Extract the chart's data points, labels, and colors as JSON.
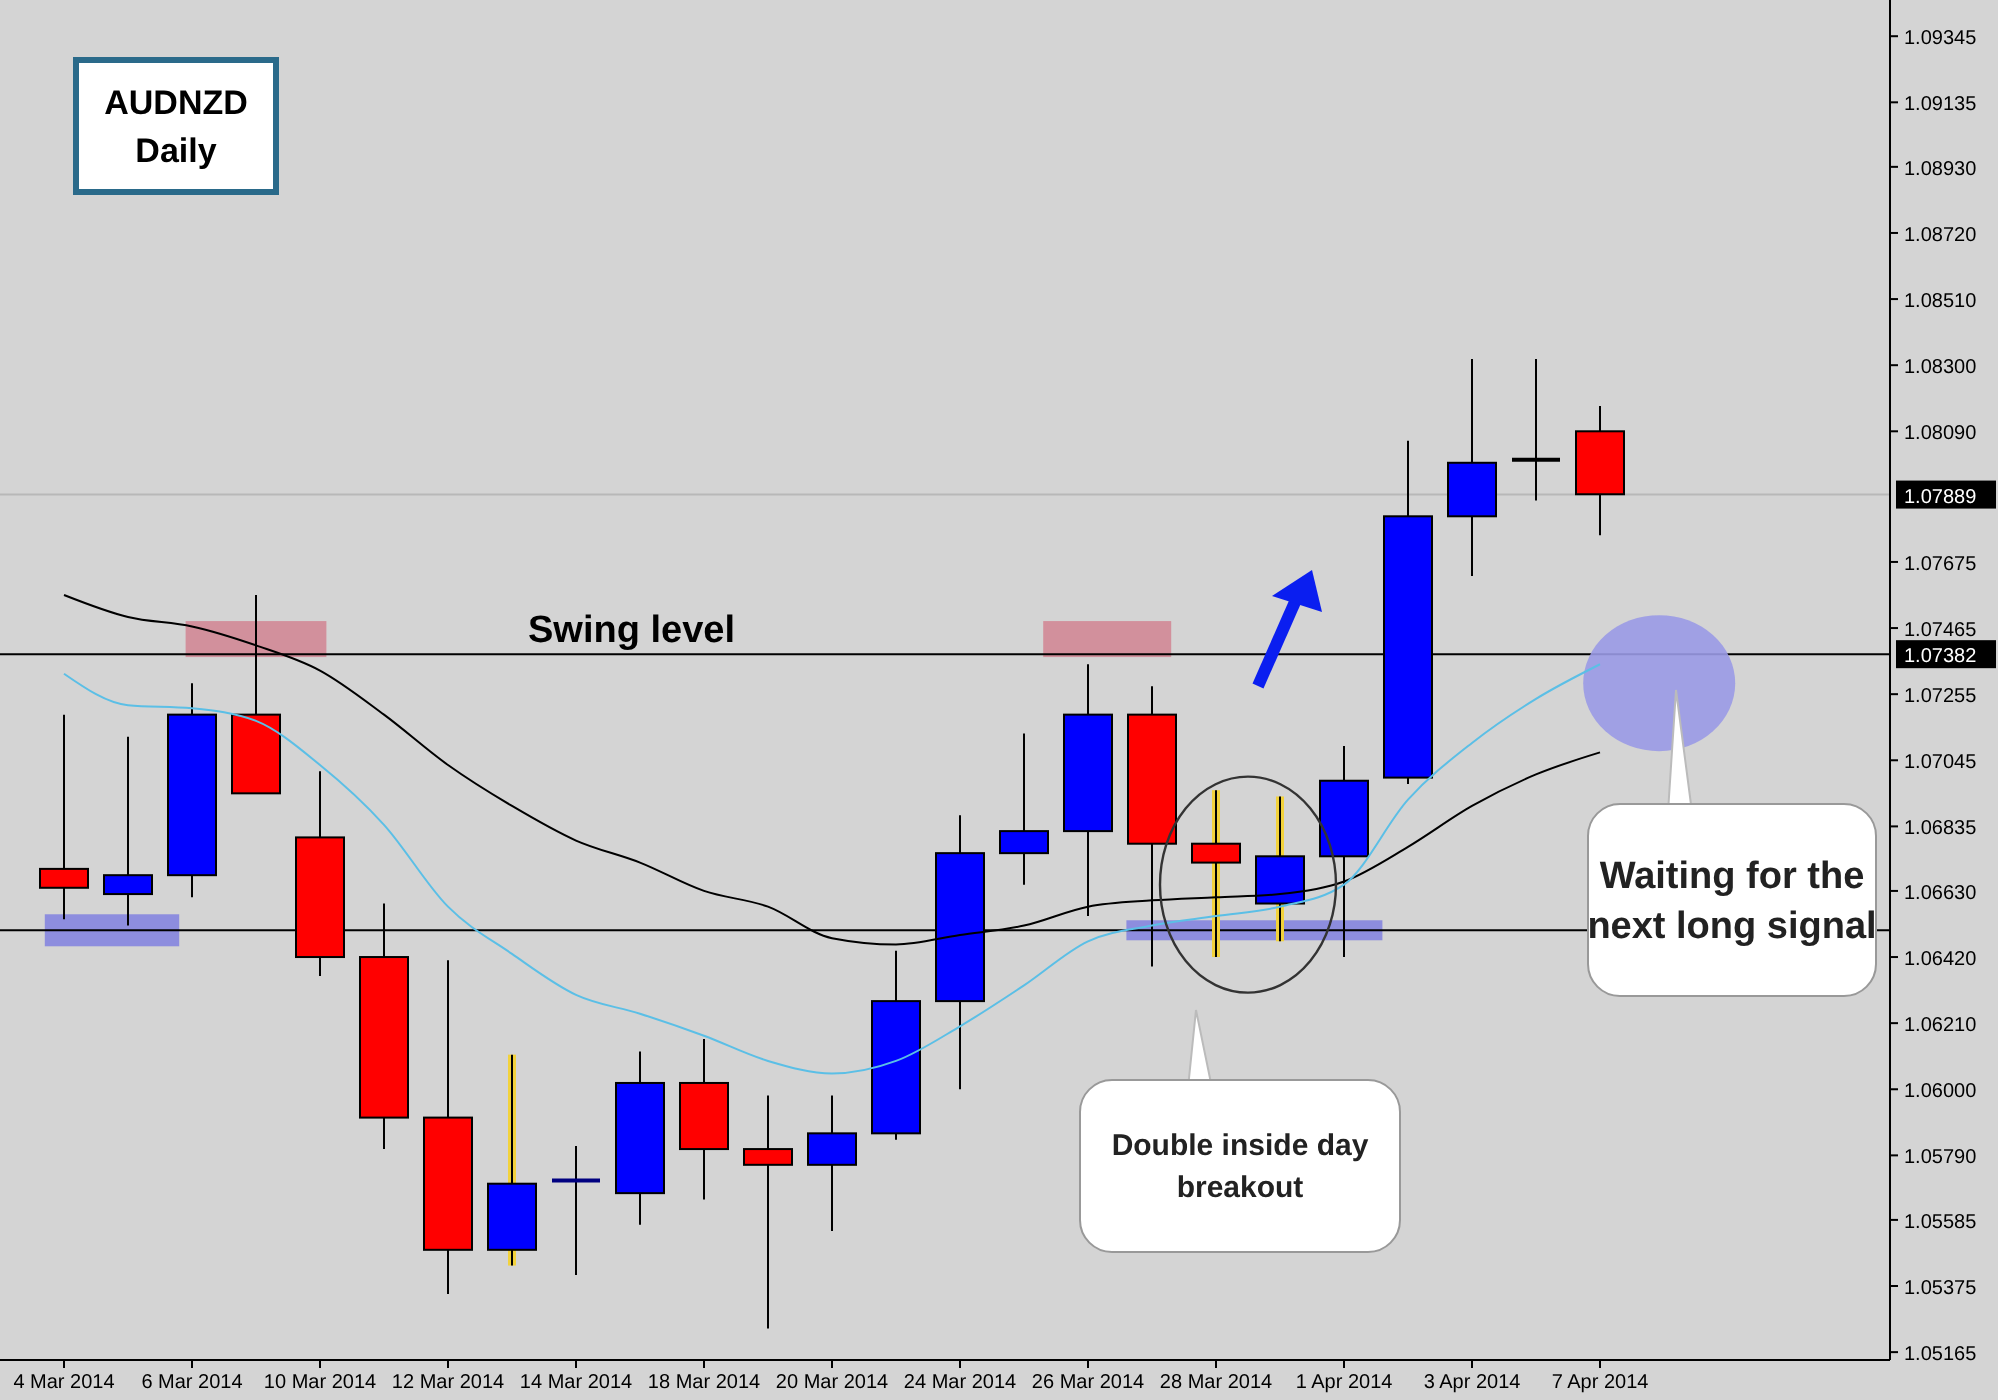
{
  "chart_data": {
    "type": "candlestick",
    "title": "AUDNZD",
    "subtitle": "Daily",
    "categories": [
      "4 Mar 2014",
      null,
      "6 Mar 2014",
      null,
      "10 Mar 2014",
      null,
      "12 Mar 2014",
      null,
      "14 Mar 2014",
      null,
      "18 Mar 2014",
      null,
      "20 Mar 2014",
      null,
      "24 Mar 2014",
      null,
      "26 Mar 2014",
      null,
      "28 Mar 2014",
      null,
      "1 Apr 2014",
      null,
      "3 Apr 2014",
      null,
      "7 Apr 2014"
    ],
    "ohlc": [
      [
        1.067,
        1.0719,
        1.0654,
        1.0664
      ],
      [
        1.0662,
        1.0712,
        1.0652,
        1.0668
      ],
      [
        1.0668,
        1.0729,
        1.0661,
        1.0719
      ],
      [
        1.0719,
        1.0757,
        1.0694,
        1.0694
      ],
      [
        1.068,
        1.0701,
        1.0636,
        1.0642
      ],
      [
        1.0642,
        1.0659,
        1.0581,
        1.0591
      ],
      [
        1.0591,
        1.0641,
        1.0535,
        1.0549
      ],
      [
        1.0549,
        1.0611,
        1.0544,
        1.057
      ],
      [
        1.057,
        1.0582,
        1.0541,
        1.0571
      ],
      [
        1.0567,
        1.0612,
        1.0557,
        1.0602
      ],
      [
        1.0602,
        1.0616,
        1.0565,
        1.0581
      ],
      [
        1.0581,
        1.0598,
        1.0524,
        1.0576
      ],
      [
        1.0576,
        1.0598,
        1.0555,
        1.0586
      ],
      [
        1.0586,
        1.0644,
        1.0584,
        1.0628
      ],
      [
        1.0628,
        1.0687,
        1.06,
        1.0675
      ],
      [
        1.0675,
        1.0713,
        1.0665,
        1.0682
      ],
      [
        1.0682,
        1.0735,
        1.0655,
        1.0719
      ],
      [
        1.0719,
        1.0728,
        1.0639,
        1.0678
      ],
      [
        1.0678,
        1.0695,
        1.0642,
        1.0672
      ],
      [
        1.0659,
        1.0693,
        1.0647,
        1.0674
      ],
      [
        1.0674,
        1.0709,
        1.0642,
        1.0698
      ],
      [
        1.0699,
        1.0806,
        1.0697,
        1.0782
      ],
      [
        1.0782,
        1.0832,
        1.0763,
        1.0799
      ],
      [
        1.0799,
        1.0832,
        1.0787,
        1.08
      ],
      [
        1.0809,
        1.0817,
        1.0776,
        1.0789
      ]
    ],
    "colors": [
      "#ff0000",
      "#0000ff",
      "#0000ff",
      "#ff0000",
      "#ff0000",
      "#ff0000",
      "#ff0000",
      "#0000ff",
      "#000080",
      "#0000ff",
      "#ff0000",
      "#ff0000",
      "#0000ff",
      "#0000ff",
      "#0000ff",
      "#0000ff",
      "#0000ff",
      "#ff0000",
      "#ff0000",
      "#0000ff",
      "#0000ff",
      "#0000ff",
      "#0000ff",
      "#000000",
      "#ff0000"
    ],
    "series": [
      {
        "type": "line",
        "color": "#000000",
        "values": [
          1.0757,
          1.075,
          1.0747,
          1.0741,
          1.0733,
          1.0719,
          1.0703,
          1.069,
          1.0679,
          1.0672,
          1.0663,
          1.0658,
          1.0648,
          1.0646,
          1.0649,
          1.0652,
          1.0658,
          1.066,
          1.0661,
          1.0662,
          1.0666,
          1.0677,
          1.069,
          1.07,
          1.0707
        ]
      },
      {
        "type": "line",
        "color": "#5bbfe6",
        "values": [
          1.0732,
          1.0722,
          1.0721,
          1.0717,
          1.0703,
          1.0684,
          1.0658,
          1.0643,
          1.063,
          1.0624,
          1.0617,
          1.0609,
          1.0605,
          1.0609,
          1.062,
          1.0633,
          1.0647,
          1.0652,
          1.0655,
          1.0658,
          1.0665,
          1.0692,
          1.071,
          1.0724,
          1.0735
        ]
      }
    ],
    "ylim": [
      1.0514,
      1.0946
    ],
    "yticks": [
      {
        "value": 1.09345,
        "label": "1.09345"
      },
      {
        "value": 1.09135,
        "label": "1.09135"
      },
      {
        "value": 1.0893,
        "label": "1.08930"
      },
      {
        "value": 1.0872,
        "label": "1.08720"
      },
      {
        "value": 1.0851,
        "label": "1.08510"
      },
      {
        "value": 1.083,
        "label": "1.08300"
      },
      {
        "value": 1.0809,
        "label": "1.08090"
      },
      {
        "value": 1.07675,
        "label": "1.07675"
      },
      {
        "value": 1.07465,
        "label": "1.07465"
      },
      {
        "value": 1.07255,
        "label": "1.07255"
      },
      {
        "value": 1.07045,
        "label": "1.07045"
      },
      {
        "value": 1.06835,
        "label": "1.06835"
      },
      {
        "value": 1.0663,
        "label": "1.06630"
      },
      {
        "value": 1.0642,
        "label": "1.06420"
      },
      {
        "value": 1.0621,
        "label": "1.06210"
      },
      {
        "value": 1.06,
        "label": "1.06000"
      },
      {
        "value": 1.0579,
        "label": "1.05790"
      },
      {
        "value": 1.05585,
        "label": "1.05585"
      },
      {
        "value": 1.05375,
        "label": "1.05375"
      },
      {
        "value": 1.05165,
        "label": "1.05165"
      }
    ],
    "ref_lines": [
      {
        "axis": "y",
        "value": 1.07889,
        "label": "1.07889",
        "color": "#b8b8b8"
      },
      {
        "axis": "y",
        "value": 1.07382,
        "label": "1.07382",
        "color": "#000000"
      },
      {
        "axis": "y",
        "value": 1.06505,
        "color": "#000000"
      }
    ],
    "annotations": [
      {
        "text": "Swing level",
        "y": 1.07382
      },
      "Double inside day breakout",
      "Waiting for the next long signal"
    ]
  }
}
